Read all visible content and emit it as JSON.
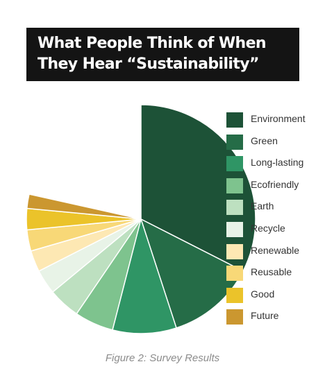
{
  "title": {
    "line1": "What People Think of When",
    "line2": "They Hear “Sustainability”"
  },
  "caption": "Figure 2: Survey Results",
  "chart_data": {
    "type": "pie",
    "title": "What People Think of When They Hear “Sustainability”",
    "unit": "percent",
    "legend_position": "right",
    "categories": [
      "Environment",
      "Green",
      "Long-lasting",
      "Ecofriendly",
      "Earth",
      "Recycle",
      "Renewable",
      "Reusable",
      "Good",
      "Future"
    ],
    "values": [
      32.5,
      12.5,
      9,
      5.5,
      4.5,
      3.5,
      3,
      3,
      3,
      2
    ],
    "colors": [
      "#1d5237",
      "#256c47",
      "#2f9565",
      "#7ec38e",
      "#bde0c0",
      "#e8f3e7",
      "#fde8b3",
      "#f8d877",
      "#ebc32a",
      "#cb9730"
    ]
  }
}
